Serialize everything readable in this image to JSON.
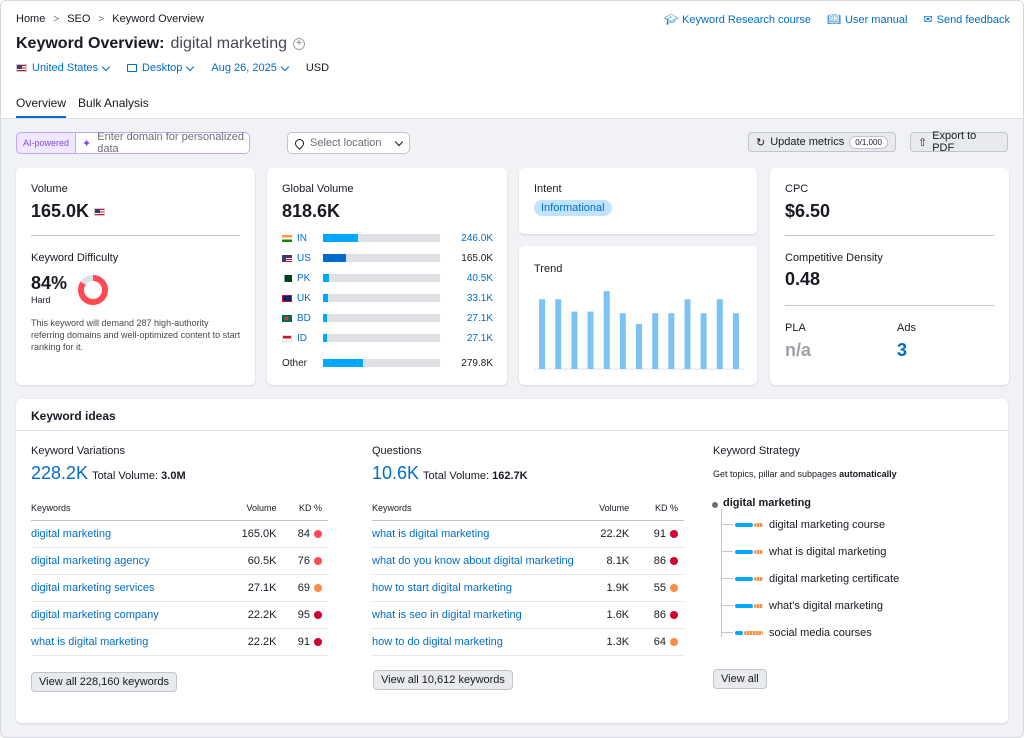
{
  "breadcrumb": [
    "Home",
    "SEO",
    "Keyword Overview"
  ],
  "top_links": [
    {
      "icon": "graduation-cap-icon",
      "label": "Keyword Research course"
    },
    {
      "icon": "book-icon",
      "label": "User manual"
    },
    {
      "icon": "chat-icon",
      "label": "Send feedback"
    }
  ],
  "title": {
    "prefix": "Keyword Overview:",
    "keyword": "digital marketing"
  },
  "filters": {
    "country": "United States",
    "device": "Desktop",
    "date": "Aug 26, 2025",
    "currency": "USD"
  },
  "tabs": [
    "Overview",
    "Bulk Analysis"
  ],
  "toolbar": {
    "ai_tag": "AI-powered",
    "domain_placeholder": "Enter domain for personalized data",
    "location_placeholder": "Select location",
    "update_label": "Update metrics",
    "update_count": "0/1,000",
    "export_label": "Export to PDF"
  },
  "volume": {
    "label": "Volume",
    "value": "165.0K"
  },
  "difficulty": {
    "label": "Keyword Difficulty",
    "value": "84%",
    "level": "Hard",
    "percent": 84,
    "description": "This keyword will demand 287 high-authority referring domains and well-optimized content to start ranking for it."
  },
  "global_volume": {
    "label": "Global Volume",
    "value": "818.6K",
    "rows": [
      {
        "code": "IN",
        "value": "246.0K",
        "share": 0.3
      },
      {
        "code": "US",
        "value": "165.0K",
        "share": 0.2
      },
      {
        "code": "PK",
        "value": "40.5K",
        "share": 0.05
      },
      {
        "code": "UK",
        "value": "33.1K",
        "share": 0.04
      },
      {
        "code": "BD",
        "value": "27.1K",
        "share": 0.033
      },
      {
        "code": "ID",
        "value": "27.1K",
        "share": 0.033
      }
    ],
    "other_label": "Other",
    "other_value": "279.8K",
    "other_share": 0.34
  },
  "intent": {
    "label": "Intent",
    "value": "Informational"
  },
  "trend": {
    "label": "Trend",
    "values": [
      0.85,
      0.85,
      0.7,
      0.7,
      0.95,
      0.68,
      0.55,
      0.68,
      0.68,
      0.85,
      0.68,
      0.85,
      0.68
    ]
  },
  "cpc": {
    "label": "CPC",
    "value": "$6.50"
  },
  "density": {
    "label": "Competitive Density",
    "value": "0.48"
  },
  "pla": {
    "label": "PLA",
    "value": "n/a"
  },
  "ads": {
    "label": "Ads",
    "value": "3"
  },
  "keyword_ideas": {
    "title": "Keyword ideas",
    "variations": {
      "title": "Keyword Variations",
      "count": "228.2K",
      "total_label": "Total Volume:",
      "total_value": "3.0M",
      "headers": [
        "Keywords",
        "Volume",
        "KD %"
      ],
      "rows": [
        {
          "kw": "digital marketing",
          "vol": "165.0K",
          "kd": "84",
          "color": "#ff4953"
        },
        {
          "kw": "digital marketing agency",
          "vol": "60.5K",
          "kd": "76",
          "color": "#ff4953"
        },
        {
          "kw": "digital marketing services",
          "vol": "27.1K",
          "kd": "69",
          "color": "#ff8c43"
        },
        {
          "kw": "digital marketing company",
          "vol": "22.2K",
          "kd": "95",
          "color": "#d1002f"
        },
        {
          "kw": "what is digital marketing",
          "vol": "22.2K",
          "kd": "91",
          "color": "#d1002f"
        }
      ],
      "view_all": "View all 228,160 keywords"
    },
    "questions": {
      "title": "Questions",
      "count": "10.6K",
      "total_label": "Total Volume:",
      "total_value": "162.7K",
      "headers": [
        "Keywords",
        "Volume",
        "KD %"
      ],
      "rows": [
        {
          "kw": "what is digital marketing",
          "vol": "22.2K",
          "kd": "91",
          "color": "#d1002f"
        },
        {
          "kw": "what do you know about digital marketing",
          "vol": "8.1K",
          "kd": "86",
          "color": "#d1002f"
        },
        {
          "kw": "how to start digital marketing",
          "vol": "1.9K",
          "kd": "55",
          "color": "#ff8c43"
        },
        {
          "kw": "what is seo in digital marketing",
          "vol": "1.6K",
          "kd": "86",
          "color": "#d1002f"
        },
        {
          "kw": "how to do digital marketing",
          "vol": "1.3K",
          "kd": "64",
          "color": "#ff8c43"
        }
      ],
      "view_all": "View all 10,612 keywords"
    },
    "strategy": {
      "title": "Keyword Strategy",
      "subtitle": "Get topics, pillar and subpages",
      "subtitle_bold": "automatically",
      "root": "digital marketing",
      "items": [
        "digital marketing course",
        "what is digital marketing",
        "digital marketing certificate",
        "what's digital marketing",
        "social media courses"
      ],
      "view_all": "View all"
    }
  }
}
